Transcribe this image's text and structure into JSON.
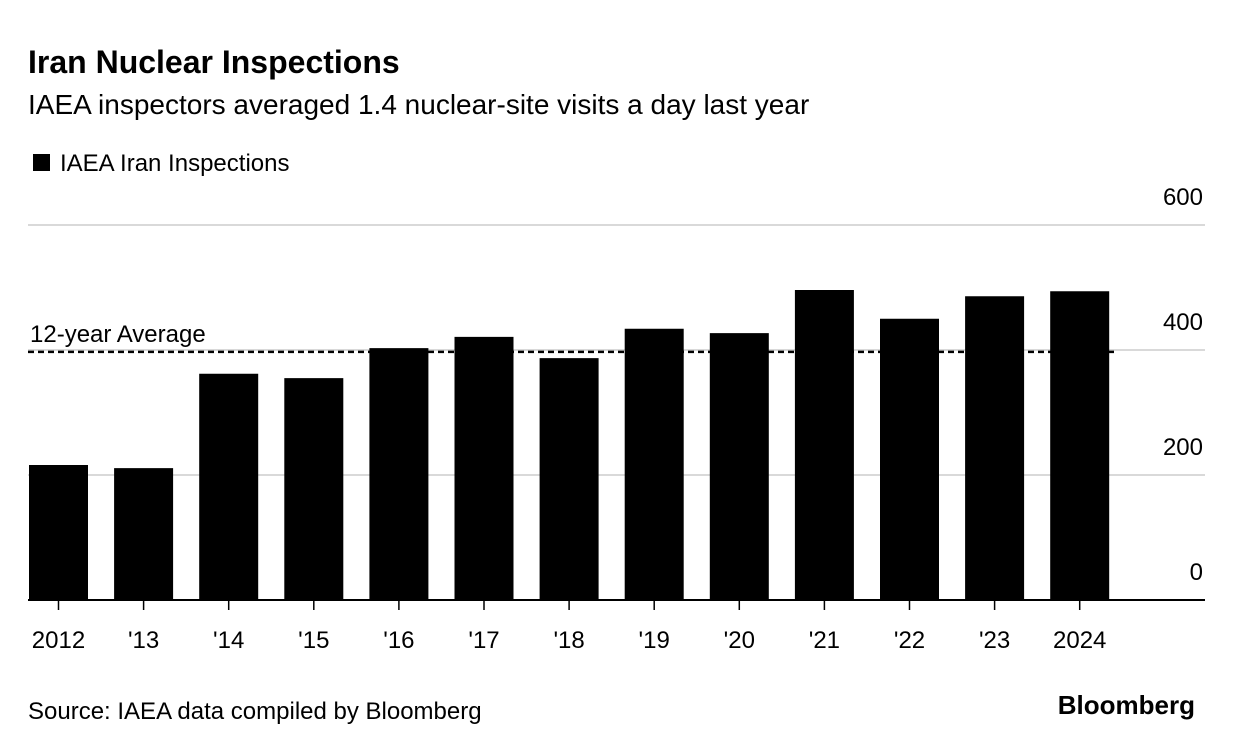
{
  "chart_data": {
    "type": "bar",
    "title": "Iran Nuclear Inspections",
    "subtitle": "IAEA inspectors averaged 1.4 nuclear-site visits a day last year",
    "legend": "IAEA Iran Inspections",
    "categories": [
      "2012",
      "'13",
      "'14",
      "'15",
      "'16",
      "'17",
      "'18",
      "'19",
      "'20",
      "'21",
      "'22",
      "'23",
      "2024"
    ],
    "values": [
      216,
      211,
      362,
      355,
      403,
      421,
      387,
      434,
      427,
      496,
      450,
      486,
      494
    ],
    "color": "#000000",
    "ylim": [
      0,
      600
    ],
    "yticks": [
      0,
      200,
      400,
      600
    ],
    "grid": true,
    "reference_line": {
      "label": "12-year Average",
      "value": 397
    },
    "source": "Source: IAEA data compiled by Bloomberg",
    "brand": "Bloomberg"
  }
}
